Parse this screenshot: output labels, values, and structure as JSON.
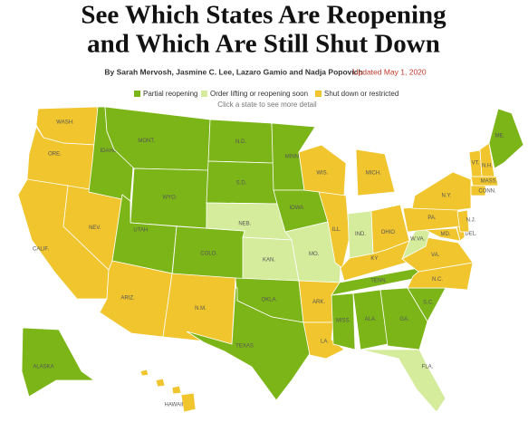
{
  "header": {
    "title_lines": [
      "See Which States Are Reopening",
      "and Which Are Still Shut Down"
    ],
    "byline": "By Sarah Mervosh, Jasmine C. Lee, Lazaro Gamio and Nadja Popovich",
    "updated": "Updated May 1, 2020"
  },
  "legend": [
    {
      "label": "Partial reopening",
      "color": "#7cb518"
    },
    {
      "label": "Order lifting or reopening soon",
      "color": "#d4ec9c"
    },
    {
      "label": "Shut down or restricted",
      "color": "#f0c52e"
    }
  ],
  "instruction": "Click a state to see more detail",
  "states": [
    {
      "label": "WASH.",
      "color": "#f0c52e"
    },
    {
      "label": "ORE.",
      "color": "#f0c52e"
    },
    {
      "label": "CALIF.",
      "color": "#f0c52e"
    },
    {
      "label": "NEV.",
      "color": "#f0c52e"
    },
    {
      "label": "IDAHO",
      "color": "#7cb518"
    },
    {
      "label": "MONT.",
      "color": "#7cb518"
    },
    {
      "label": "WYO.",
      "color": "#7cb518"
    },
    {
      "label": "UTAH",
      "color": "#7cb518"
    },
    {
      "label": "COLO.",
      "color": "#7cb518"
    },
    {
      "label": "ARIZ.",
      "color": "#f0c52e"
    },
    {
      "label": "N.M.",
      "color": "#f0c52e"
    },
    {
      "label": "N.D.",
      "color": "#7cb518"
    },
    {
      "label": "S.D.",
      "color": "#7cb518"
    },
    {
      "label": "NEB.",
      "color": "#d4ec9c"
    },
    {
      "label": "KAN.",
      "color": "#d4ec9c"
    },
    {
      "label": "OKLA.",
      "color": "#7cb518"
    },
    {
      "label": "TEXAS",
      "color": "#7cb518"
    },
    {
      "label": "MINN.",
      "color": "#7cb518"
    },
    {
      "label": "IOWA",
      "color": "#7cb518"
    },
    {
      "label": "MO.",
      "color": "#d4ec9c"
    },
    {
      "label": "ARK.",
      "color": "#f0c52e"
    },
    {
      "label": "LA.",
      "color": "#f0c52e"
    },
    {
      "label": "WIS.",
      "color": "#f0c52e"
    },
    {
      "label": "ILL.",
      "color": "#f0c52e"
    },
    {
      "label": "MICH.",
      "color": "#f0c52e"
    },
    {
      "label": "IND.",
      "color": "#d4ec9c"
    },
    {
      "label": "OHIO",
      "color": "#f0c52e"
    },
    {
      "label": "KY",
      "color": "#f0c52e"
    },
    {
      "label": "TENN.",
      "color": "#7cb518"
    },
    {
      "label": "MISS.",
      "color": "#7cb518"
    },
    {
      "label": "ALA.",
      "color": "#7cb518"
    },
    {
      "label": "GA.",
      "color": "#7cb518"
    },
    {
      "label": "FLA.",
      "color": "#d4ec9c"
    },
    {
      "label": "S.C.",
      "color": "#7cb518"
    },
    {
      "label": "N.C.",
      "color": "#f0c52e"
    },
    {
      "label": "VA.",
      "color": "#f0c52e"
    },
    {
      "label": "W.VA.",
      "color": "#d4ec9c"
    },
    {
      "label": "MD.",
      "color": "#f0c52e"
    },
    {
      "label": "DEL.",
      "color": "#f0c52e"
    },
    {
      "label": "PA.",
      "color": "#f0c52e"
    },
    {
      "label": "N.J.",
      "color": "#f0c52e"
    },
    {
      "label": "N.Y.",
      "color": "#f0c52e"
    },
    {
      "label": "VT.",
      "color": "#f0c52e"
    },
    {
      "label": "N.H.",
      "color": "#f0c52e"
    },
    {
      "label": "ME.",
      "color": "#7cb518"
    },
    {
      "label": "MASS.",
      "color": "#f0c52e"
    },
    {
      "label": "CONN.",
      "color": "#f0c52e"
    },
    {
      "label": "ALASKA",
      "color": "#7cb518"
    },
    {
      "label": "HAWAII",
      "color": "#f0c52e"
    }
  ]
}
